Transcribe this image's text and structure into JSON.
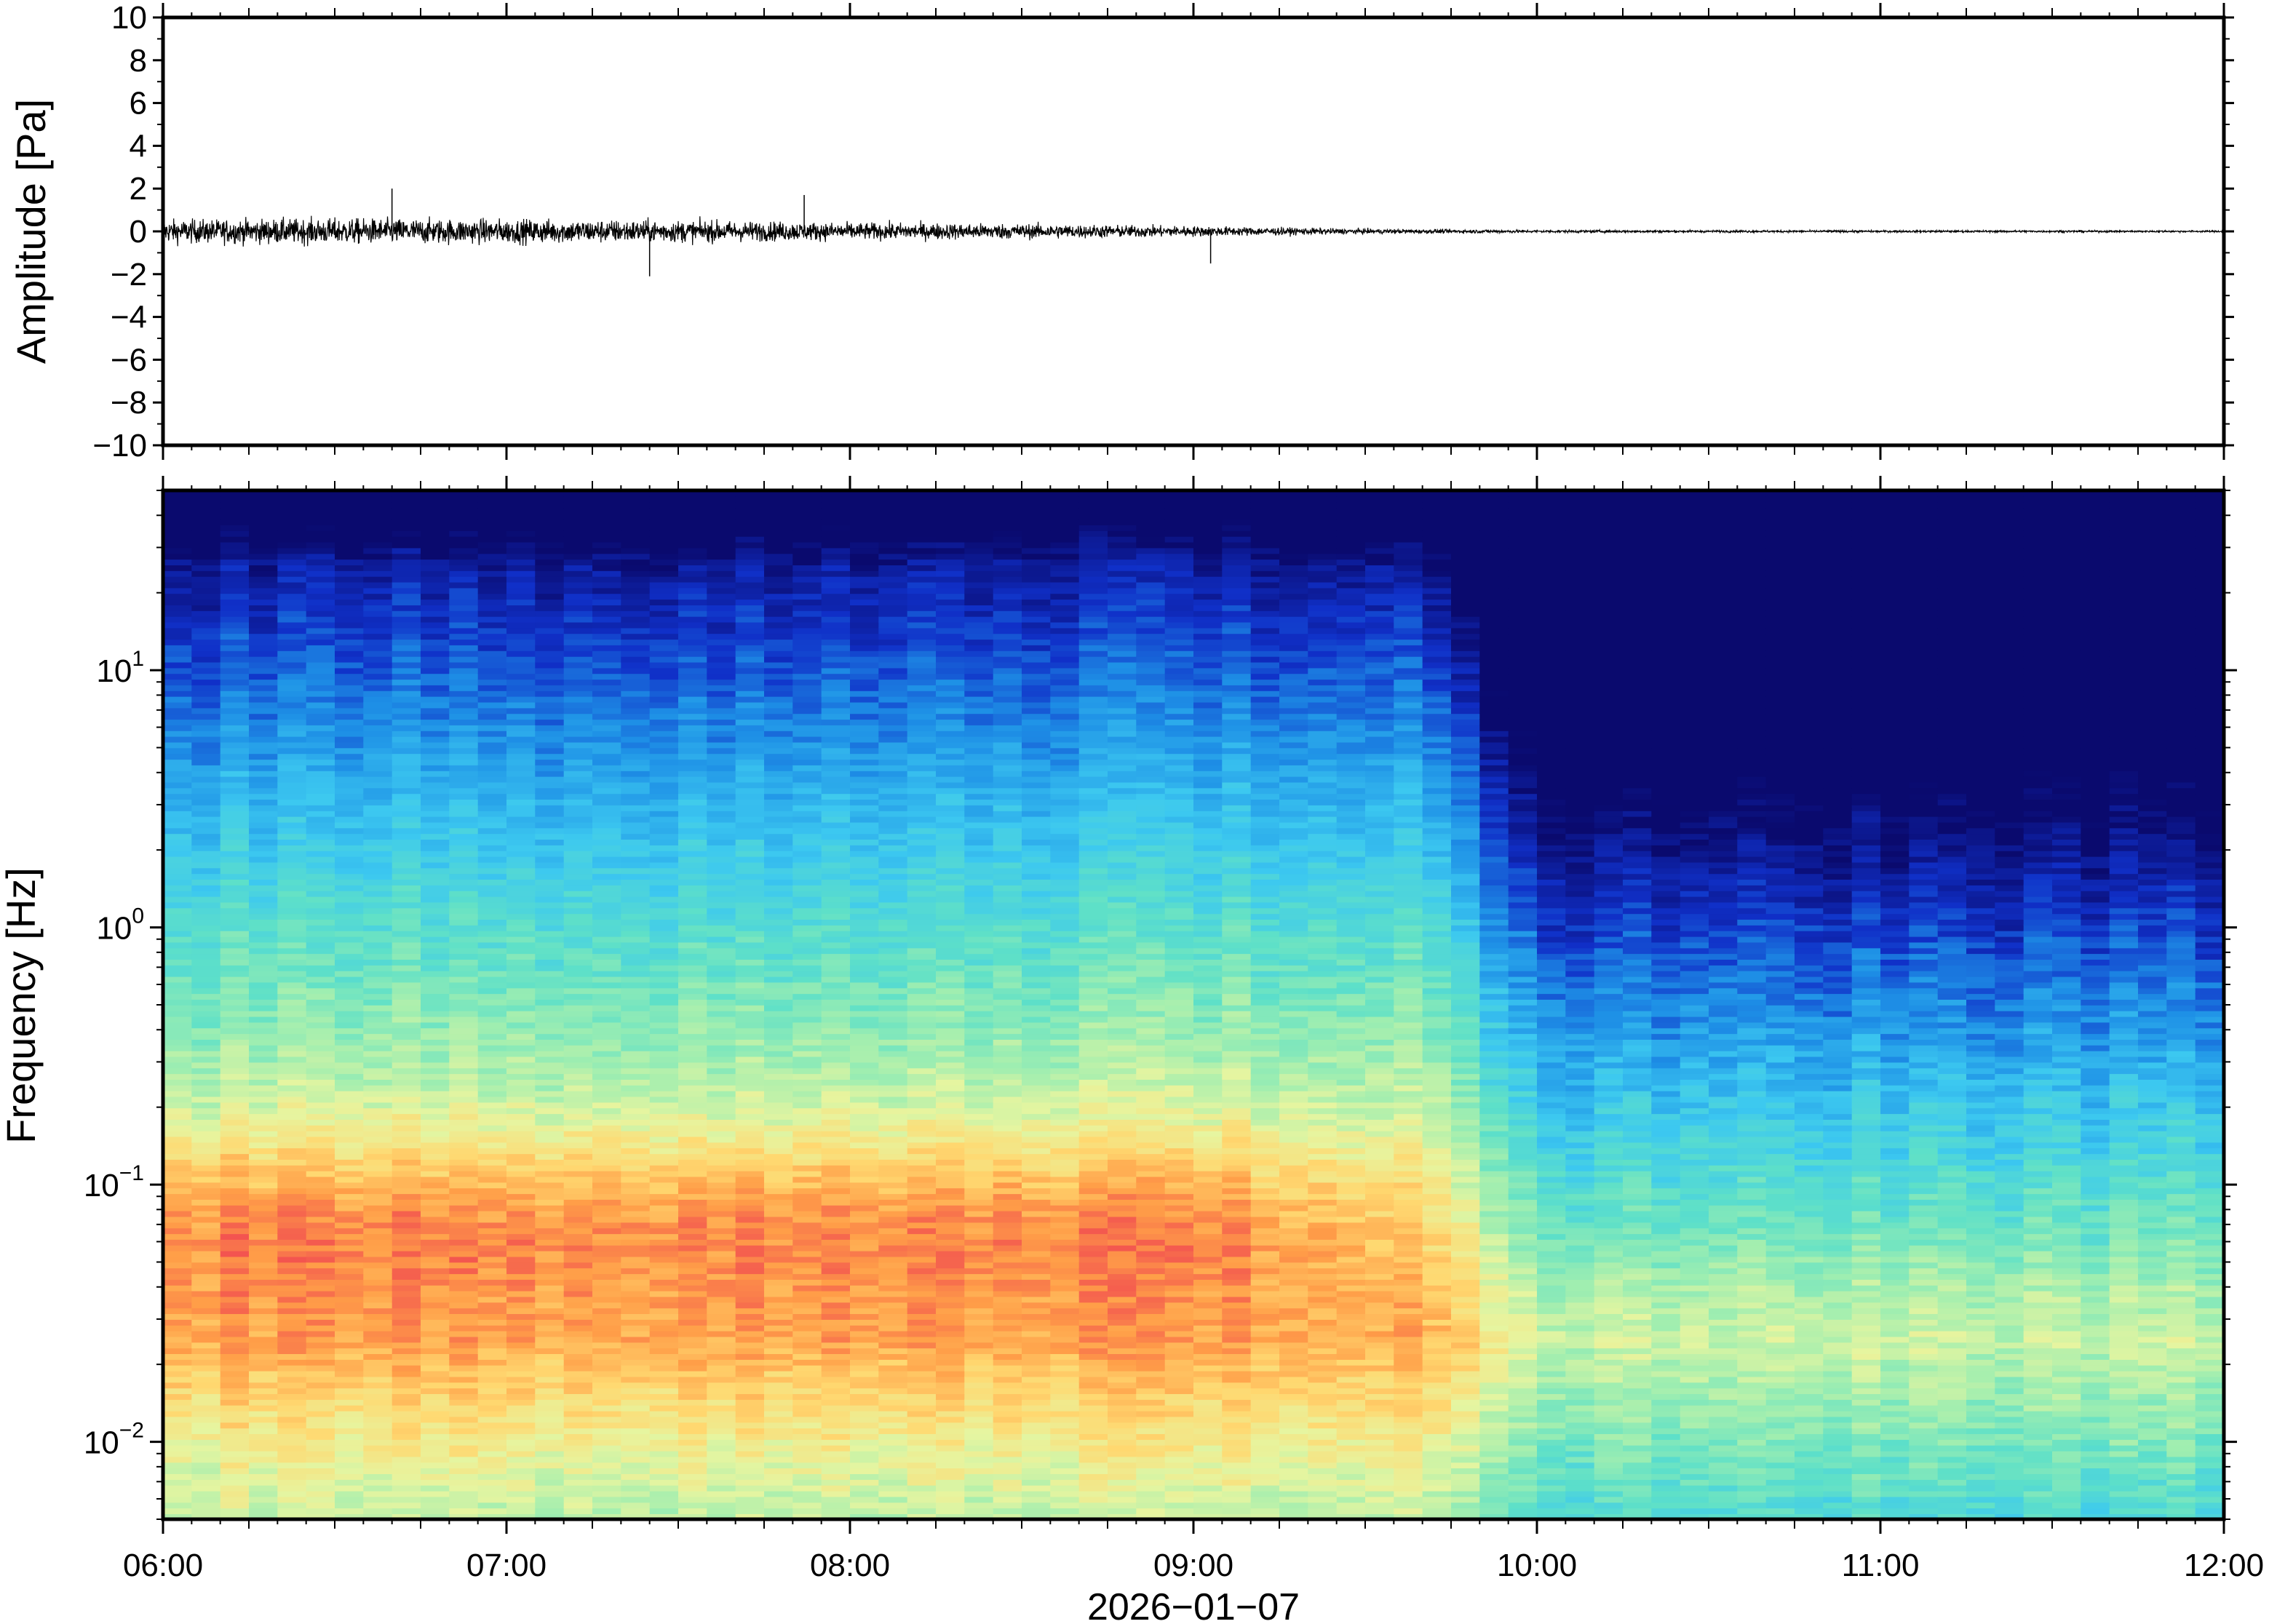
{
  "chart_data": [
    {
      "type": "line",
      "panel": "waveform",
      "ylabel": "Amplitude [Pa]",
      "ylim": [
        -10,
        10
      ],
      "yticks": [
        10,
        8,
        6,
        4,
        2,
        0,
        -2,
        -4,
        -6,
        -8,
        -10
      ],
      "ytick_labels": [
        "10",
        "8",
        "6",
        "4",
        "2",
        "0",
        "−2",
        "−4",
        "−6",
        "−8",
        "−10"
      ],
      "xlim": [
        "06:00",
        "12:00"
      ],
      "line_color": "#000000",
      "envelope": {
        "x": [
          "06:00",
          "06:30",
          "07:00",
          "07:30",
          "08:00",
          "08:30",
          "09:00",
          "09:30",
          "10:00",
          "10:30",
          "11:00",
          "11:30",
          "12:00"
        ],
        "half_amplitude_pa": [
          1.0,
          1.1,
          1.05,
          0.95,
          0.75,
          0.65,
          0.45,
          0.22,
          0.12,
          0.1,
          0.09,
          0.09,
          0.08
        ]
      },
      "spikes": [
        {
          "x": "06:40",
          "y": 2.0
        },
        {
          "x": "07:25",
          "y": -2.1
        },
        {
          "x": "07:52",
          "y": 1.7
        },
        {
          "x": "09:03",
          "y": -1.5
        }
      ]
    },
    {
      "type": "heatmap",
      "panel": "spectrogram",
      "ylabel": "Frequency [Hz]",
      "yscale": "log",
      "ylim": [
        0.005,
        50
      ],
      "yticks": [
        {
          "value": 10,
          "base": "10",
          "exp": "1"
        },
        {
          "value": 1,
          "base": "10",
          "exp": "0"
        },
        {
          "value": 0.1,
          "base": "10",
          "exp": "−1"
        },
        {
          "value": 0.01,
          "base": "10",
          "exp": "−2"
        }
      ],
      "xlim": [
        "06:00",
        "12:00"
      ],
      "xticks": [
        "06:00",
        "07:00",
        "08:00",
        "09:00",
        "10:00",
        "11:00",
        "12:00"
      ],
      "xlabel": "2026−01−07",
      "colormap": "jet-like",
      "colors": [
        "#0a0a6e",
        "#1030c8",
        "#1e90e6",
        "#3cc8f0",
        "#5ee0c8",
        "#a0eeb0",
        "#e6f5a0",
        "#ffd870",
        "#ff9e48",
        "#f25050",
        "#ff8080"
      ],
      "intensity_profile": {
        "x": [
          "06:00",
          "07:00",
          "08:00",
          "09:00",
          "09:40",
          "10:00",
          "11:00",
          "12:00"
        ],
        "red_band_upper_hz": [
          0.25,
          0.25,
          0.22,
          0.15,
          0.06,
          0.0,
          0.0,
          0.0
        ],
        "dark_blue_lower_hz": [
          25,
          20,
          18,
          15,
          12,
          6,
          4,
          4
        ]
      }
    }
  ]
}
